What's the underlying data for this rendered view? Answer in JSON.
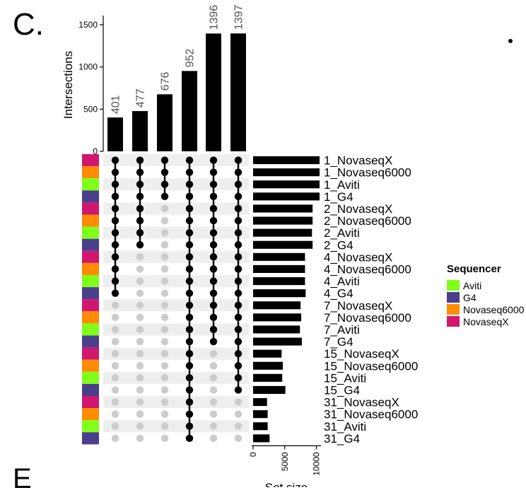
{
  "panel_labels": {
    "current": "C.",
    "next": "E"
  },
  "chart_data": {
    "type": "upset",
    "intersections": {
      "ylabel": "Intersections",
      "ylim": [
        0,
        1500
      ],
      "yticks": [
        0,
        500,
        1000,
        1500
      ],
      "values": [
        401,
        477,
        676,
        952,
        1396,
        1397
      ]
    },
    "sets": [
      {
        "name": "1_NovaseqX",
        "sequencer": "NovaseqX",
        "size": 10500
      },
      {
        "name": "1_Novaseq6000",
        "sequencer": "Novaseq6000",
        "size": 10500
      },
      {
        "name": "1_Aviti",
        "sequencer": "Aviti",
        "size": 10500
      },
      {
        "name": "1_G4",
        "sequencer": "G4",
        "size": 10500
      },
      {
        "name": "2_NovaseqX",
        "sequencer": "NovaseqX",
        "size": 9400
      },
      {
        "name": "2_Novaseq6000",
        "sequencer": "Novaseq6000",
        "size": 9400
      },
      {
        "name": "2_Aviti",
        "sequencer": "Aviti",
        "size": 9300
      },
      {
        "name": "2_G4",
        "sequencer": "G4",
        "size": 9400
      },
      {
        "name": "4_NovaseqX",
        "sequencer": "NovaseqX",
        "size": 8200
      },
      {
        "name": "4_Novaseq6000",
        "sequencer": "Novaseq6000",
        "size": 8200
      },
      {
        "name": "4_Aviti",
        "sequencer": "Aviti",
        "size": 8200
      },
      {
        "name": "4_G4",
        "sequencer": "G4",
        "size": 8300
      },
      {
        "name": "7_NovaseqX",
        "sequencer": "NovaseqX",
        "size": 7500
      },
      {
        "name": "7_Novaseq6000",
        "sequencer": "Novaseq6000",
        "size": 7600
      },
      {
        "name": "7_Aviti",
        "sequencer": "Aviti",
        "size": 7400
      },
      {
        "name": "7_G4",
        "sequencer": "G4",
        "size": 7700
      },
      {
        "name": "15_NovaseqX",
        "sequencer": "NovaseqX",
        "size": 4500
      },
      {
        "name": "15_Novaseq6000",
        "sequencer": "Novaseq6000",
        "size": 4700
      },
      {
        "name": "15_Aviti",
        "sequencer": "Aviti",
        "size": 4600
      },
      {
        "name": "15_G4",
        "sequencer": "G4",
        "size": 5100
      },
      {
        "name": "31_NovaseqX",
        "sequencer": "NovaseqX",
        "size": 2200
      },
      {
        "name": "31_Novaseq6000",
        "sequencer": "Novaseq6000",
        "size": 2300
      },
      {
        "name": "31_Aviti",
        "sequencer": "Aviti",
        "size": 2300
      },
      {
        "name": "31_G4",
        "sequencer": "G4",
        "size": 2600
      }
    ],
    "matrix": [
      [
        true,
        true,
        true,
        true,
        true,
        true
      ],
      [
        true,
        true,
        true,
        true,
        true,
        true
      ],
      [
        true,
        true,
        true,
        true,
        true,
        true
      ],
      [
        true,
        true,
        true,
        true,
        true,
        true
      ],
      [
        true,
        true,
        false,
        true,
        true,
        true
      ],
      [
        true,
        true,
        false,
        true,
        true,
        true
      ],
      [
        true,
        true,
        false,
        true,
        true,
        true
      ],
      [
        true,
        true,
        false,
        true,
        true,
        true
      ],
      [
        true,
        false,
        false,
        true,
        true,
        true
      ],
      [
        true,
        false,
        false,
        true,
        true,
        true
      ],
      [
        true,
        false,
        false,
        true,
        true,
        true
      ],
      [
        true,
        false,
        false,
        true,
        true,
        true
      ],
      [
        false,
        false,
        false,
        true,
        true,
        true
      ],
      [
        false,
        false,
        false,
        true,
        true,
        true
      ],
      [
        false,
        false,
        false,
        true,
        true,
        true
      ],
      [
        false,
        false,
        false,
        true,
        true,
        true
      ],
      [
        false,
        false,
        false,
        true,
        false,
        true
      ],
      [
        false,
        false,
        false,
        true,
        false,
        true
      ],
      [
        false,
        false,
        false,
        true,
        false,
        true
      ],
      [
        false,
        false,
        false,
        true,
        false,
        true
      ],
      [
        false,
        false,
        false,
        true,
        false,
        false
      ],
      [
        false,
        false,
        false,
        true,
        false,
        false
      ],
      [
        false,
        false,
        false,
        true,
        false,
        false
      ],
      [
        false,
        false,
        false,
        true,
        false,
        false
      ]
    ],
    "set_size": {
      "xlabel": "Set size",
      "xlim": [
        0,
        10500
      ],
      "xticks": [
        0,
        5000,
        10000
      ]
    },
    "legend": {
      "title": "Sequencer",
      "placement": "right",
      "entries": [
        {
          "label": "Aviti",
          "color": "#7FFF1A"
        },
        {
          "label": "G4",
          "color": "#4B3F8C"
        },
        {
          "label": "Novaseq6000",
          "color": "#FF8C00"
        },
        {
          "label": "NovaseqX",
          "color": "#D1166F"
        }
      ]
    },
    "colors": {
      "bar": "#000000",
      "dot_on": "#000000",
      "dot_off": "#CCCCCC",
      "stripe": "#EEEEEE"
    }
  }
}
